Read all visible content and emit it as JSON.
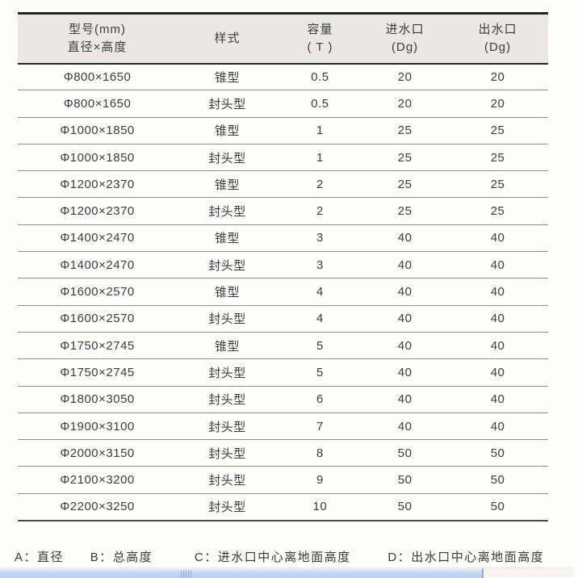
{
  "page": {
    "background": "#fcfcfa",
    "header_bg": "#e9e8e5",
    "heavy_line_color": "#242424",
    "row_line_color": "#8e8e8e",
    "text_color": "#3d3d3d"
  },
  "table": {
    "columns": [
      {
        "line1": "型号(mm)",
        "line2": "直径×高度"
      },
      {
        "line1": "样式",
        "line2": ""
      },
      {
        "line1": "容量",
        "line2": "( T )"
      },
      {
        "line1": "进水口",
        "line2": "(Dg)"
      },
      {
        "line1": "出水口",
        "line2": "(Dg)"
      }
    ],
    "rows": [
      [
        "Φ800×1650",
        "锥型",
        "0.5",
        "20",
        "20"
      ],
      [
        "Φ800×1650",
        "封头型",
        "0.5",
        "20",
        "20"
      ],
      [
        "Φ1000×1850",
        "锥型",
        "1",
        "25",
        "25"
      ],
      [
        "Φ1000×1850",
        "封头型",
        "1",
        "25",
        "25"
      ],
      [
        "Φ1200×2370",
        "锥型",
        "2",
        "25",
        "25"
      ],
      [
        "Φ1200×2370",
        "封头型",
        "2",
        "25",
        "25"
      ],
      [
        "Φ1400×2470",
        "锥型",
        "3",
        "40",
        "40"
      ],
      [
        "Φ1400×2470",
        "封头型",
        "3",
        "40",
        "40"
      ],
      [
        "Φ1600×2570",
        "锥型",
        "4",
        "40",
        "40"
      ],
      [
        "Φ1600×2570",
        "封头型",
        "4",
        "40",
        "40"
      ],
      [
        "Φ1750×2745",
        "锥型",
        "5",
        "40",
        "40"
      ],
      [
        "Φ1750×2745",
        "封头型",
        "5",
        "40",
        "40"
      ],
      [
        "Φ1800×3050",
        "封头型",
        "6",
        "40",
        "40"
      ],
      [
        "Φ1900×3100",
        "封头型",
        "7",
        "40",
        "40"
      ],
      [
        "Φ2000×3150",
        "封头型",
        "8",
        "50",
        "50"
      ],
      [
        "Φ2100×3200",
        "封头型",
        "9",
        "50",
        "50"
      ],
      [
        "Φ2200×3250",
        "封头型",
        "10",
        "50",
        "50"
      ]
    ]
  },
  "legend": {
    "a": "A：直径",
    "b": "B：总高度",
    "c": "C：进水口中心离地面高度",
    "d": "D：出水口中心离地面高度"
  },
  "scrollbar": {
    "thumb_color": "#c2d3f5",
    "thumb_border_color": "#93a9da",
    "grip_color": "#8fabe6",
    "track_color": "#f6f5f1"
  }
}
